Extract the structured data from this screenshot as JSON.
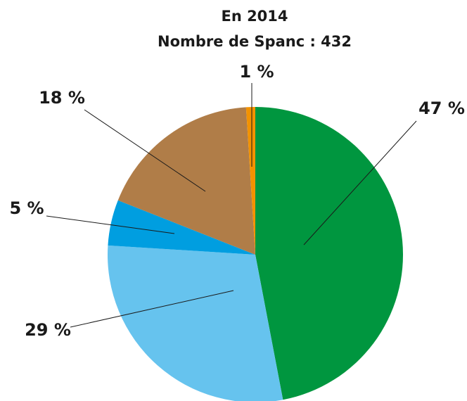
{
  "chart_data": {
    "type": "pie",
    "title": "En 2014",
    "subtitle": "Nombre de Spanc : 432",
    "series": [
      {
        "values": [
          47,
          29,
          5,
          18,
          1
        ],
        "value_labels": [
          "47 %",
          "29 %",
          "5 %",
          "18 %",
          "1 %"
        ],
        "colors": [
          "#00963f",
          "#66c3ee",
          "#009ee0",
          "#b07d48",
          "#f39200"
        ]
      }
    ]
  }
}
